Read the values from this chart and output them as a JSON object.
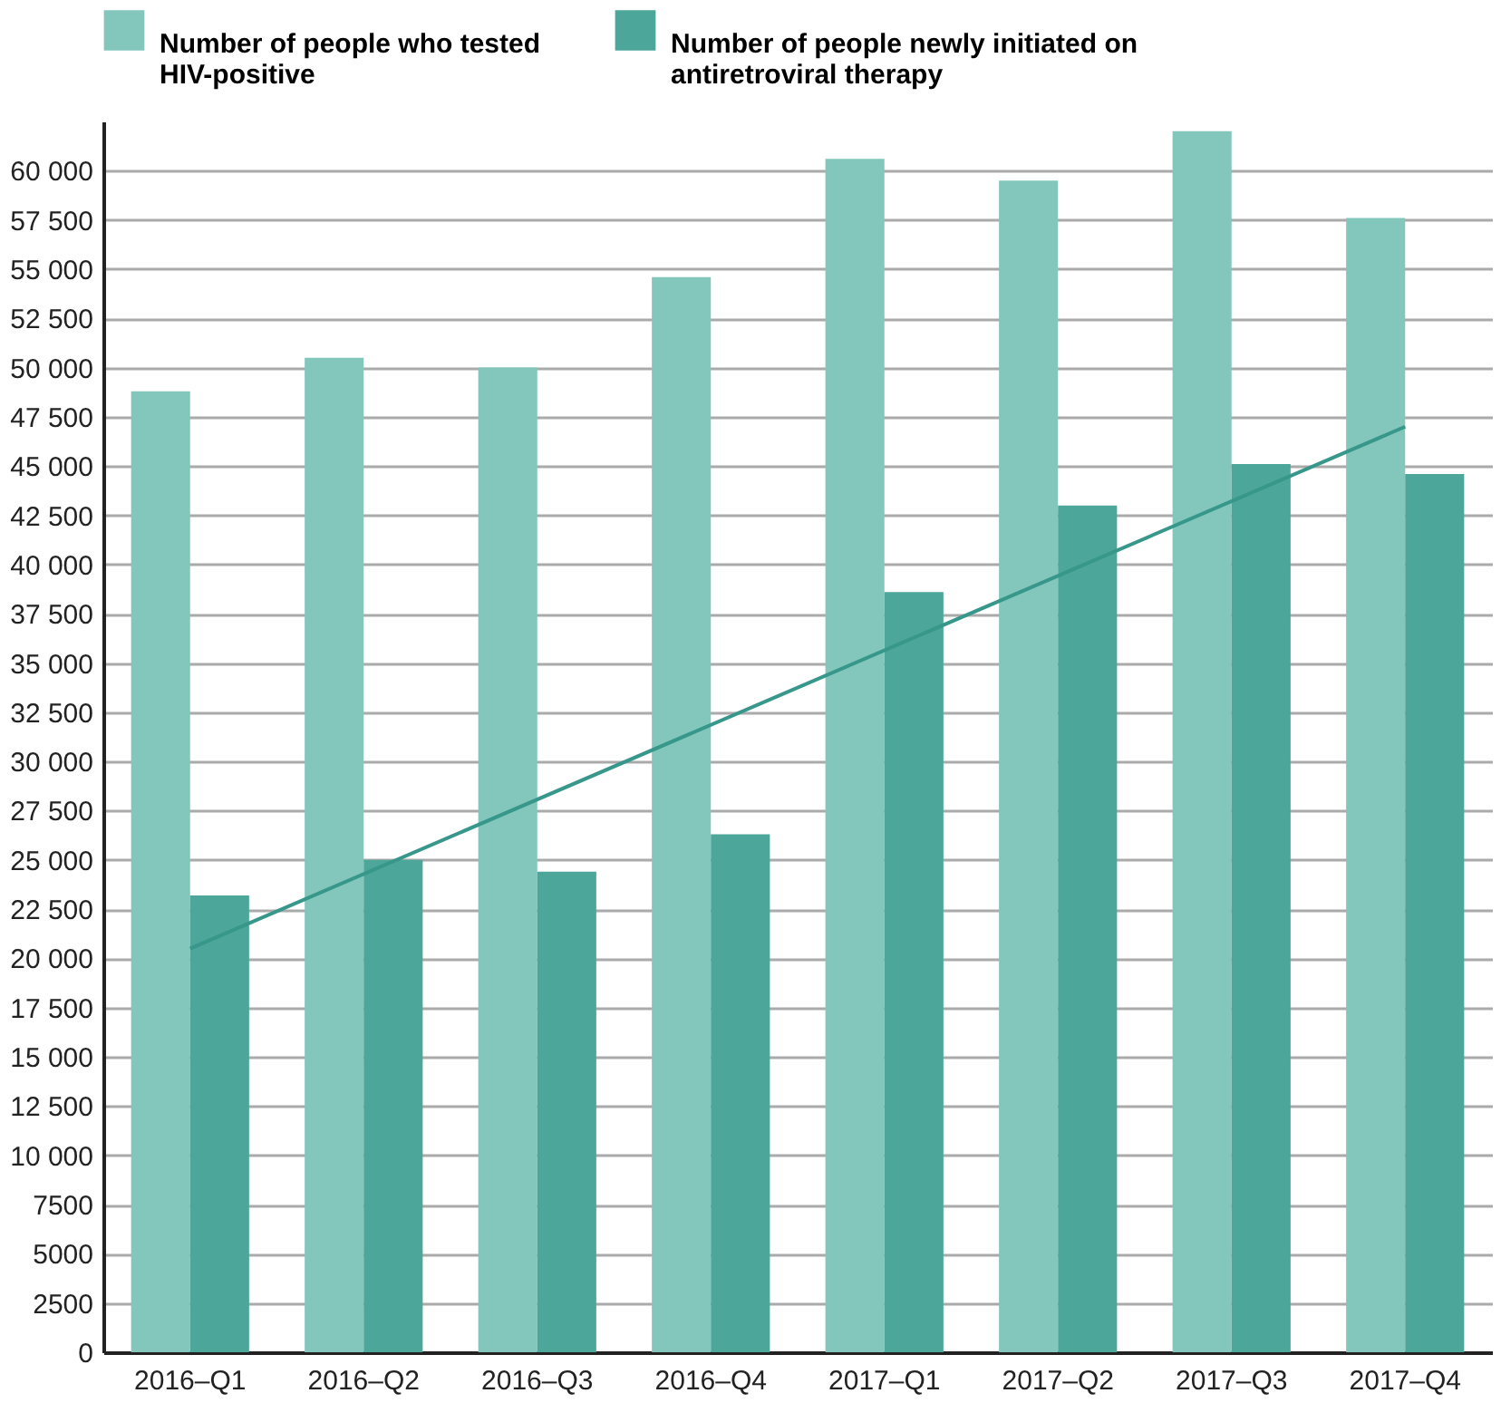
{
  "chart_data": {
    "type": "bar",
    "categories": [
      "2016–Q1",
      "2016–Q2",
      "2016–Q3",
      "2016–Q4",
      "2017–Q1",
      "2017–Q2",
      "2017–Q3",
      "2017–Q4"
    ],
    "series": [
      {
        "name": "Number of people who tested HIV-positive",
        "color": "#83c7bc",
        "values": [
          48800,
          50500,
          50000,
          54600,
          60600,
          59500,
          62000,
          57600
        ]
      },
      {
        "name": "Number of people newly initiated on antiretroviral therapy",
        "color": "#4ca699",
        "values": [
          23200,
          25000,
          24400,
          26300,
          38600,
          43000,
          45100,
          44600
        ]
      },
      {
        "type": "line",
        "color": "#37978a",
        "x": [
          "2016–Q1",
          "2017–Q4"
        ],
        "values": [
          20500,
          47000
        ]
      }
    ],
    "ylim": [
      0,
      62500
    ],
    "yticks": [
      0,
      2500,
      5000,
      7500,
      {
        "value": 10000,
        "label": "10 000"
      },
      {
        "value": 12500,
        "label": "12 500"
      },
      {
        "value": 15000,
        "label": "15 000"
      },
      {
        "value": 17500,
        "label": "17 500"
      },
      {
        "value": 20000,
        "label": "20 000"
      },
      {
        "value": 22500,
        "label": "22 500"
      },
      {
        "value": 25000,
        "label": "25 000"
      },
      {
        "value": 27500,
        "label": "27 500"
      },
      {
        "value": 30000,
        "label": "30 000"
      },
      {
        "value": 32500,
        "label": "32 500"
      },
      {
        "value": 35000,
        "label": "35 000"
      },
      {
        "value": 37500,
        "label": "37 500"
      },
      {
        "value": 40000,
        "label": "40 000"
      },
      {
        "value": 42500,
        "label": "42 500"
      },
      {
        "value": 45000,
        "label": "45 000"
      },
      {
        "value": 47500,
        "label": "47 500"
      },
      {
        "value": 50000,
        "label": "50 000"
      },
      {
        "value": 52500,
        "label": "52 500"
      },
      {
        "value": 55000,
        "label": "55 000"
      },
      {
        "value": 57500,
        "label": "57 500"
      },
      {
        "value": 60000,
        "label": "60 000"
      }
    ],
    "grid": "y",
    "legend": "top left"
  }
}
